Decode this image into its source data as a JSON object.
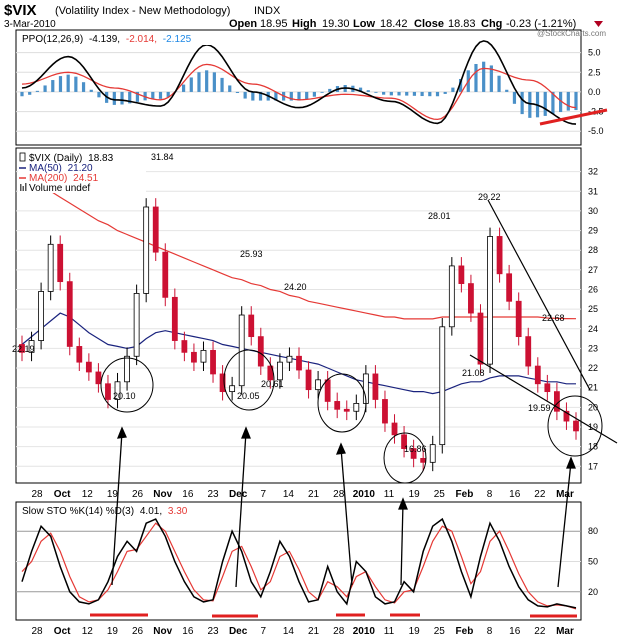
{
  "header": {
    "symbol": "$VIX",
    "name": "(Volatility Index - New Methodology)",
    "exchange": "INDX",
    "date": "3-Mar-2010",
    "open_label": "Open",
    "open": "18.95",
    "high_label": "High",
    "high": "19.30",
    "low_label": "Low",
    "low": "18.42",
    "close_label": "Close",
    "close": "18.83",
    "chg_label": "Chg",
    "chg": "-0.23 (-1.21%)",
    "watermark": "@StockCharts.com"
  },
  "colors": {
    "up_candle": "#ffffff",
    "down_candle": "#cc1133",
    "ma50": "#1a237e",
    "ma200": "#e53935",
    "ppo_line": "#000000",
    "ppo_signal": "#e53935",
    "ppo_hist": "#4a90c8",
    "trendline": "#000000",
    "annotation_red": "#e02020"
  },
  "chart_data": [
    {
      "type": "line",
      "panel": "ppo",
      "legend": "PPO(12,26,9) -4.139, -2.014, -2.125",
      "legend_parts": {
        "label": "PPO(12,26,9)",
        "ppo": "-4.139,",
        "signal": "-2.014,",
        "hist": "-2.125"
      },
      "y_ticks": [
        "5.0",
        "2.5",
        "0.0",
        "-2.5",
        "-5.0"
      ],
      "ylim": [
        -6.5,
        7.5
      ],
      "x": [
        0,
        10,
        20,
        30,
        40,
        50,
        60,
        70,
        80,
        90,
        100,
        110,
        120
      ],
      "ppo": [
        0.5,
        4.5,
        -1.0,
        -1.8,
        6.0,
        0.0,
        -2.0,
        0.5,
        -1.2,
        -4.0,
        6.5,
        -1.5,
        -4.1
      ],
      "signal": [
        1.0,
        2.5,
        0.5,
        -1.0,
        3.5,
        1.0,
        -1.0,
        -0.3,
        -0.8,
        -3.5,
        3.0,
        1.5,
        -2.0
      ]
    },
    {
      "type": "candlestick",
      "panel": "price",
      "title": "$VIX (Daily) 18.83",
      "legend": [
        {
          "name": "$VIX (Daily)",
          "value": "18.83"
        },
        {
          "name": "MA(50)",
          "value": "21.20"
        },
        {
          "name": "MA(200)",
          "value": "24.51"
        },
        {
          "name": "Volume undef",
          "value": ""
        }
      ],
      "y_ticks": [
        "32",
        "31",
        "30",
        "29",
        "28",
        "27",
        "26",
        "25",
        "24",
        "23",
        "22",
        "21",
        "20",
        "19",
        "18",
        "17"
      ],
      "ylim": [
        16.3,
        33.0
      ],
      "annotations": [
        "31.84",
        "25.93",
        "24.20",
        "22.19",
        "20.10",
        "20.05",
        "20.61",
        "16.86",
        "28.01",
        "29.22",
        "22.68",
        "21.08",
        "19.59"
      ],
      "closes": [
        22.8,
        23.4,
        25.9,
        28.3,
        26.4,
        23.1,
        22.3,
        21.8,
        21.2,
        20.4,
        21.3,
        22.6,
        25.8,
        30.2,
        27.9,
        25.6,
        23.4,
        22.8,
        22.3,
        22.9,
        21.7,
        20.8,
        21.1,
        24.7,
        23.6,
        22.1,
        21.4,
        22.3,
        22.6,
        21.9,
        20.9,
        21.4,
        20.3,
        19.9,
        19.8,
        20.2,
        21.7,
        20.4,
        19.2,
        18.6,
        17.9,
        17.4,
        17.2,
        18.1,
        24.1,
        27.2,
        26.3,
        24.8,
        22.2,
        28.7,
        26.8,
        25.4,
        23.6,
        22.1,
        21.2,
        20.8,
        19.8,
        19.3,
        18.8
      ],
      "ma50": [
        23.2,
        23.6,
        24.0,
        24.4,
        24.8,
        24.6,
        24.2,
        23.8,
        23.5,
        23.2,
        23.1,
        23.0,
        23.1,
        23.5,
        23.8,
        23.9,
        23.8,
        23.7,
        23.6,
        23.5,
        23.4,
        23.2,
        23.1,
        23.0,
        22.9,
        22.8,
        22.7,
        22.6,
        22.5,
        22.4,
        22.3,
        22.2,
        22.0,
        21.8,
        21.6,
        21.4,
        21.3,
        21.2,
        21.1,
        21.0,
        20.9,
        20.8,
        20.8,
        20.7,
        20.8,
        21.0,
        21.2,
        21.3,
        21.3,
        21.5,
        21.6,
        21.6,
        21.6,
        21.5,
        21.4,
        21.3,
        21.3,
        21.2,
        21.2
      ],
      "ma200": [
        32.0,
        31.6,
        31.3,
        31.0,
        30.7,
        30.4,
        30.1,
        29.8,
        29.5,
        29.3,
        29.0,
        28.8,
        28.6,
        28.4,
        28.2,
        28.0,
        27.8,
        27.6,
        27.4,
        27.2,
        27.0,
        26.8,
        26.6,
        26.5,
        26.3,
        26.2,
        26.0,
        25.9,
        25.7,
        25.6,
        25.4,
        25.3,
        25.2,
        25.1,
        25.0,
        24.9,
        24.8,
        24.7,
        24.6,
        24.6,
        24.5,
        24.5,
        24.5,
        24.5,
        24.6,
        24.6,
        24.6,
        24.6,
        24.6,
        24.6,
        24.6,
        24.6,
        24.6,
        24.6,
        24.6,
        24.55,
        24.53,
        24.52,
        24.51
      ]
    },
    {
      "type": "line",
      "panel": "stochastic",
      "legend": "Slow STO %K(14) %D(3) 4.01, 3.30",
      "legend_parts": {
        "label": "Slow STO %K(14) %D(3)",
        "k": "4.01,",
        "d": "3.30"
      },
      "y_ticks": [
        "80",
        "50",
        "20"
      ],
      "ylim": [
        -5,
        105
      ],
      "k": [
        30,
        60,
        85,
        75,
        45,
        20,
        10,
        8,
        12,
        30,
        55,
        70,
        60,
        88,
        92,
        75,
        50,
        30,
        15,
        10,
        12,
        50,
        80,
        60,
        30,
        15,
        40,
        70,
        55,
        30,
        10,
        12,
        45,
        20,
        8,
        50,
        40,
        15,
        8,
        10,
        30,
        20,
        60,
        85,
        92,
        70,
        40,
        15,
        55,
        88,
        70,
        45,
        25,
        12,
        6,
        5,
        8,
        6,
        4
      ],
      "d": [
        40,
        50,
        70,
        78,
        60,
        35,
        15,
        10,
        12,
        22,
        40,
        60,
        62,
        75,
        88,
        80,
        60,
        40,
        22,
        12,
        11,
        35,
        60,
        65,
        45,
        22,
        30,
        55,
        60,
        42,
        20,
        12,
        30,
        25,
        15,
        35,
        40,
        25,
        12,
        9,
        20,
        22,
        45,
        70,
        85,
        80,
        55,
        28,
        40,
        70,
        80,
        60,
        38,
        20,
        10,
        6,
        7,
        6,
        3
      ]
    }
  ],
  "x_axis": {
    "labels": [
      "28",
      "Oct",
      "12",
      "19",
      "26",
      "Nov",
      "16",
      "23",
      "Dec",
      "7",
      "14",
      "21",
      "28",
      "2010",
      "11",
      "19",
      "25",
      "Feb",
      "8",
      "16",
      "22",
      "Mar"
    ]
  }
}
